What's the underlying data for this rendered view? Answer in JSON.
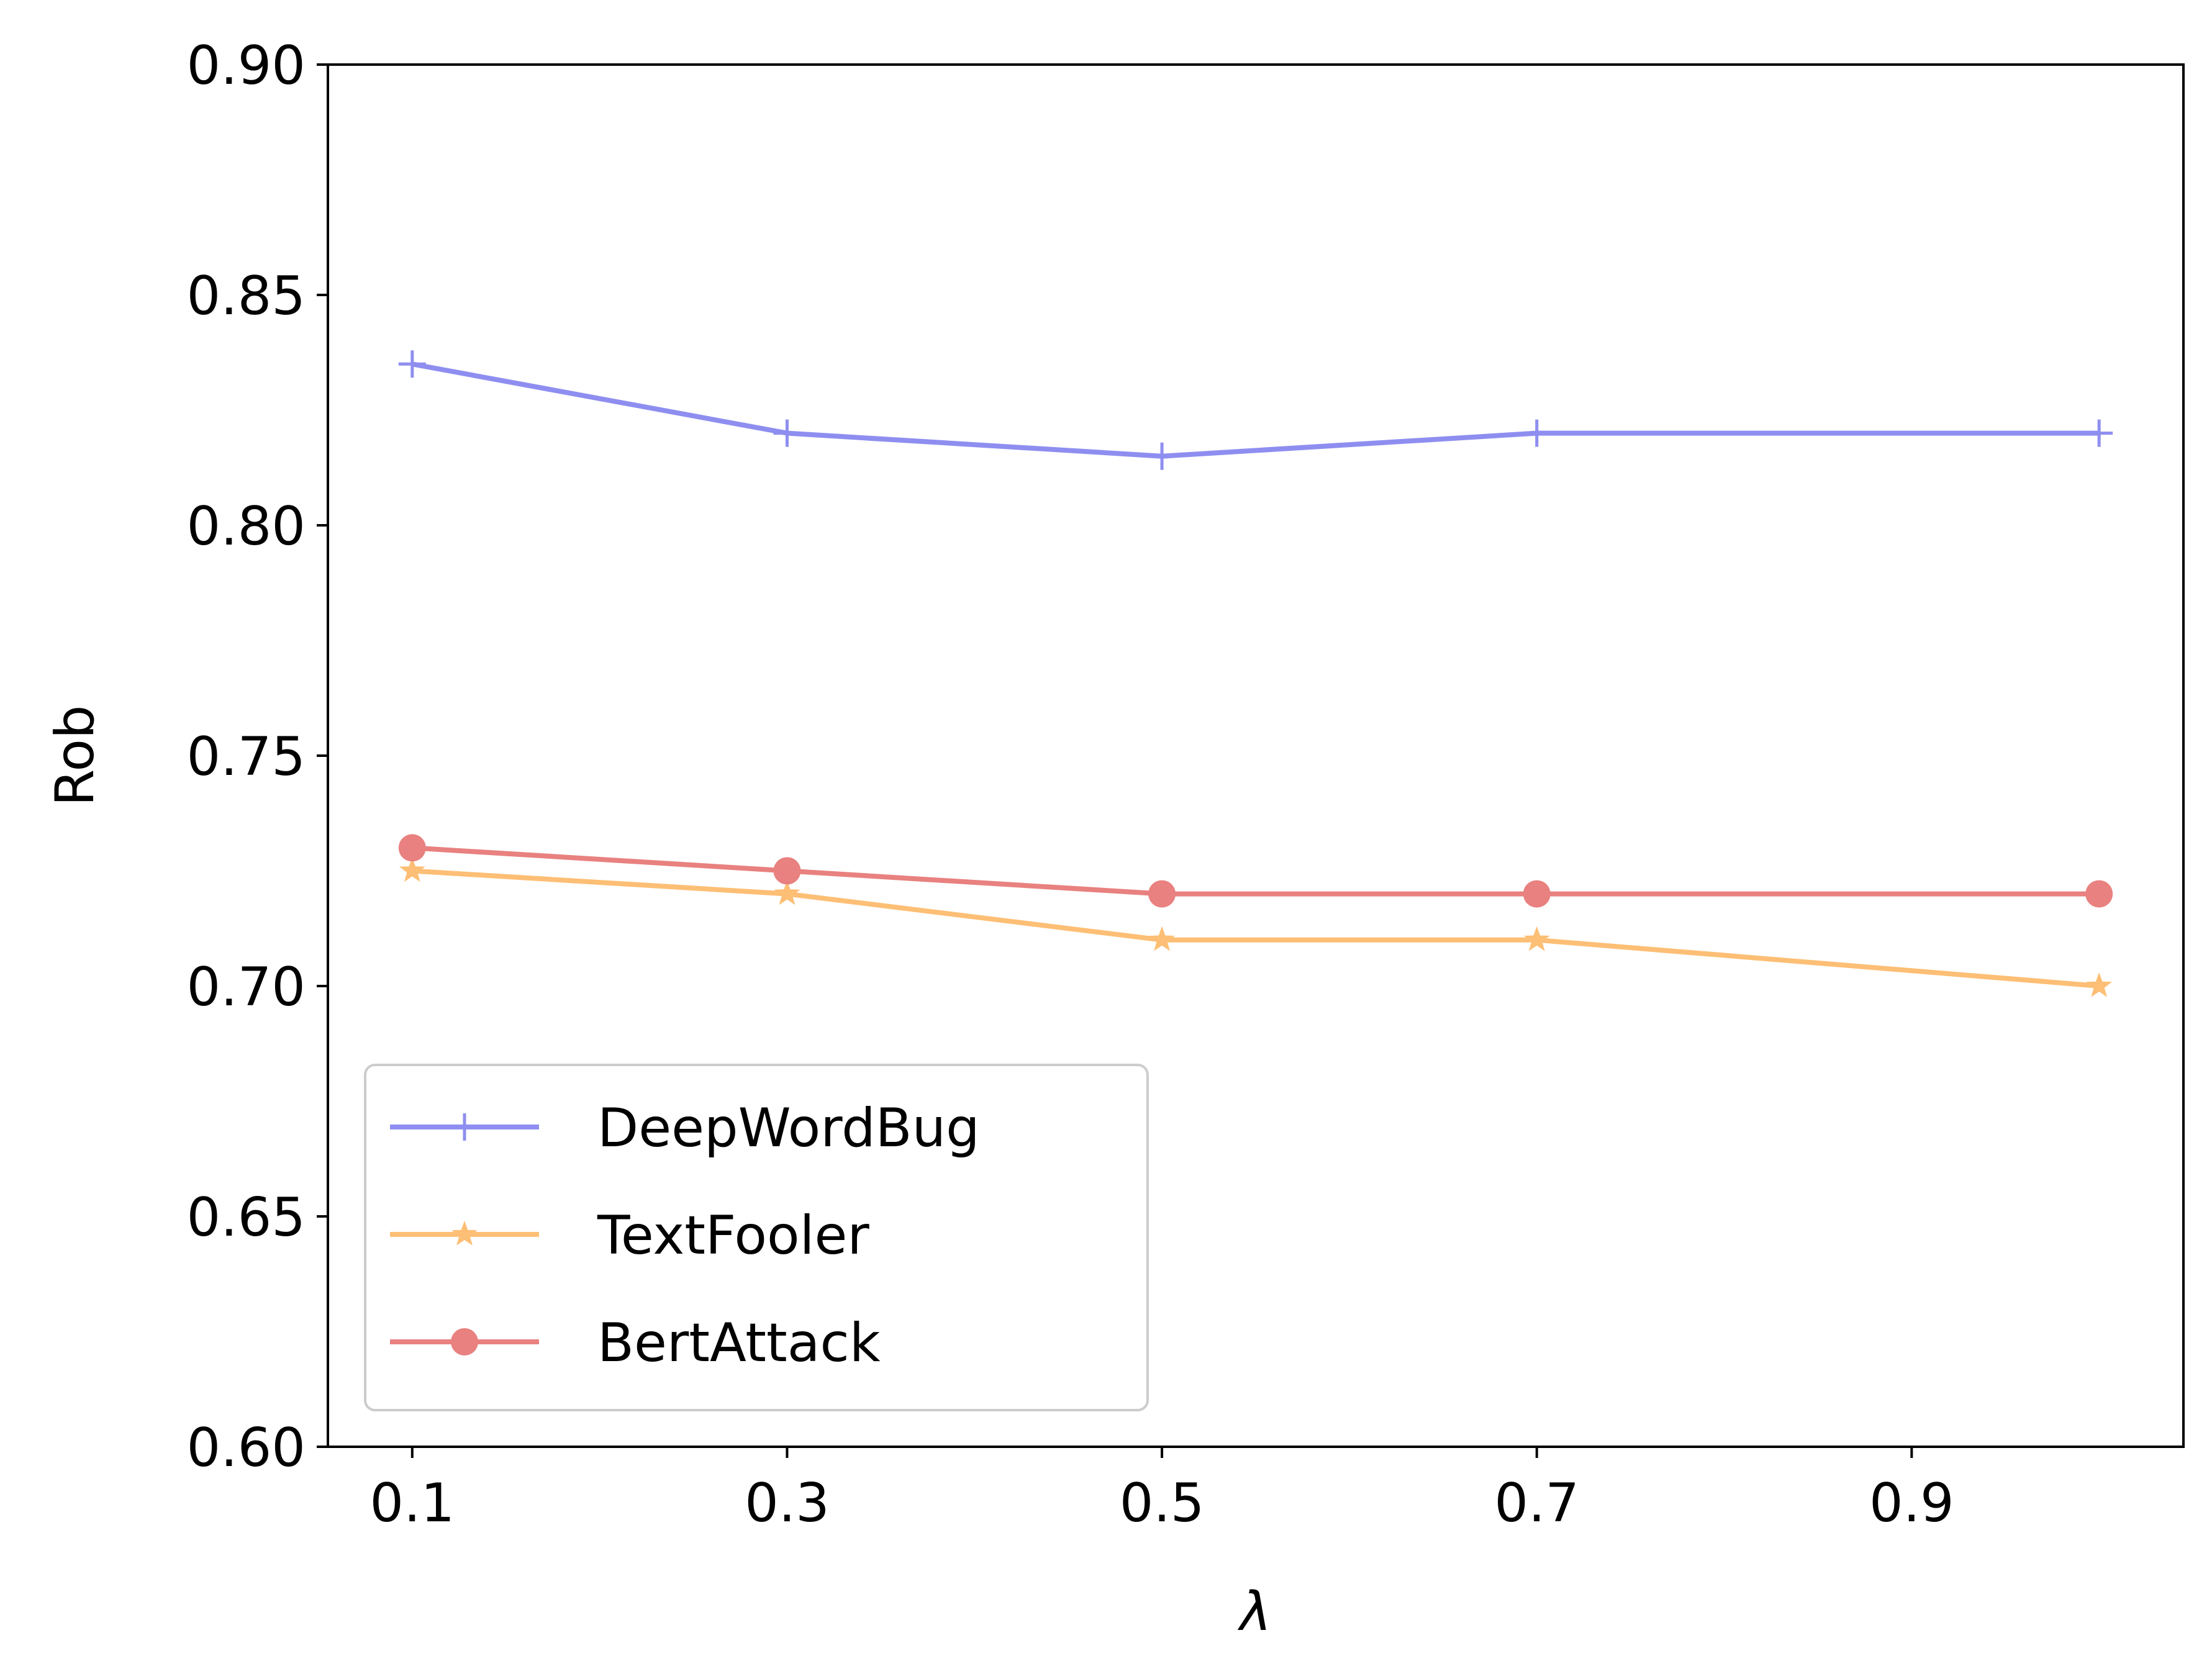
{
  "chart_data": {
    "type": "line",
    "title": "",
    "xlabel": "λ",
    "ylabel": "Rob",
    "x": [
      0.1,
      0.3,
      0.5,
      0.7,
      1.0
    ],
    "xticks": [
      0.1,
      0.3,
      0.5,
      0.7,
      0.9
    ],
    "xtick_labels": [
      "0.1",
      "0.3",
      "0.5",
      "0.7",
      "0.9"
    ],
    "xlim": [
      0.055,
      1.045
    ],
    "yticks": [
      0.6,
      0.65,
      0.7,
      0.75,
      0.8,
      0.85,
      0.9
    ],
    "ytick_labels": [
      "0.60",
      "0.65",
      "0.70",
      "0.75",
      "0.80",
      "0.85",
      "0.90"
    ],
    "ylim": [
      0.6,
      0.9
    ],
    "grid": false,
    "legend_position": "lower-left",
    "series": [
      {
        "name": "DeepWordBug",
        "marker": "plus",
        "color": "#8e8ef0",
        "values": [
          0.835,
          0.82,
          0.815,
          0.82,
          0.82
        ]
      },
      {
        "name": "TextFooler",
        "marker": "star",
        "color": "#fdbf75",
        "values": [
          0.725,
          0.72,
          0.71,
          0.71,
          0.7
        ]
      },
      {
        "name": "BertAttack",
        "marker": "circle",
        "color": "#e8817f",
        "values": [
          0.73,
          0.725,
          0.72,
          0.72,
          0.72
        ]
      }
    ]
  }
}
